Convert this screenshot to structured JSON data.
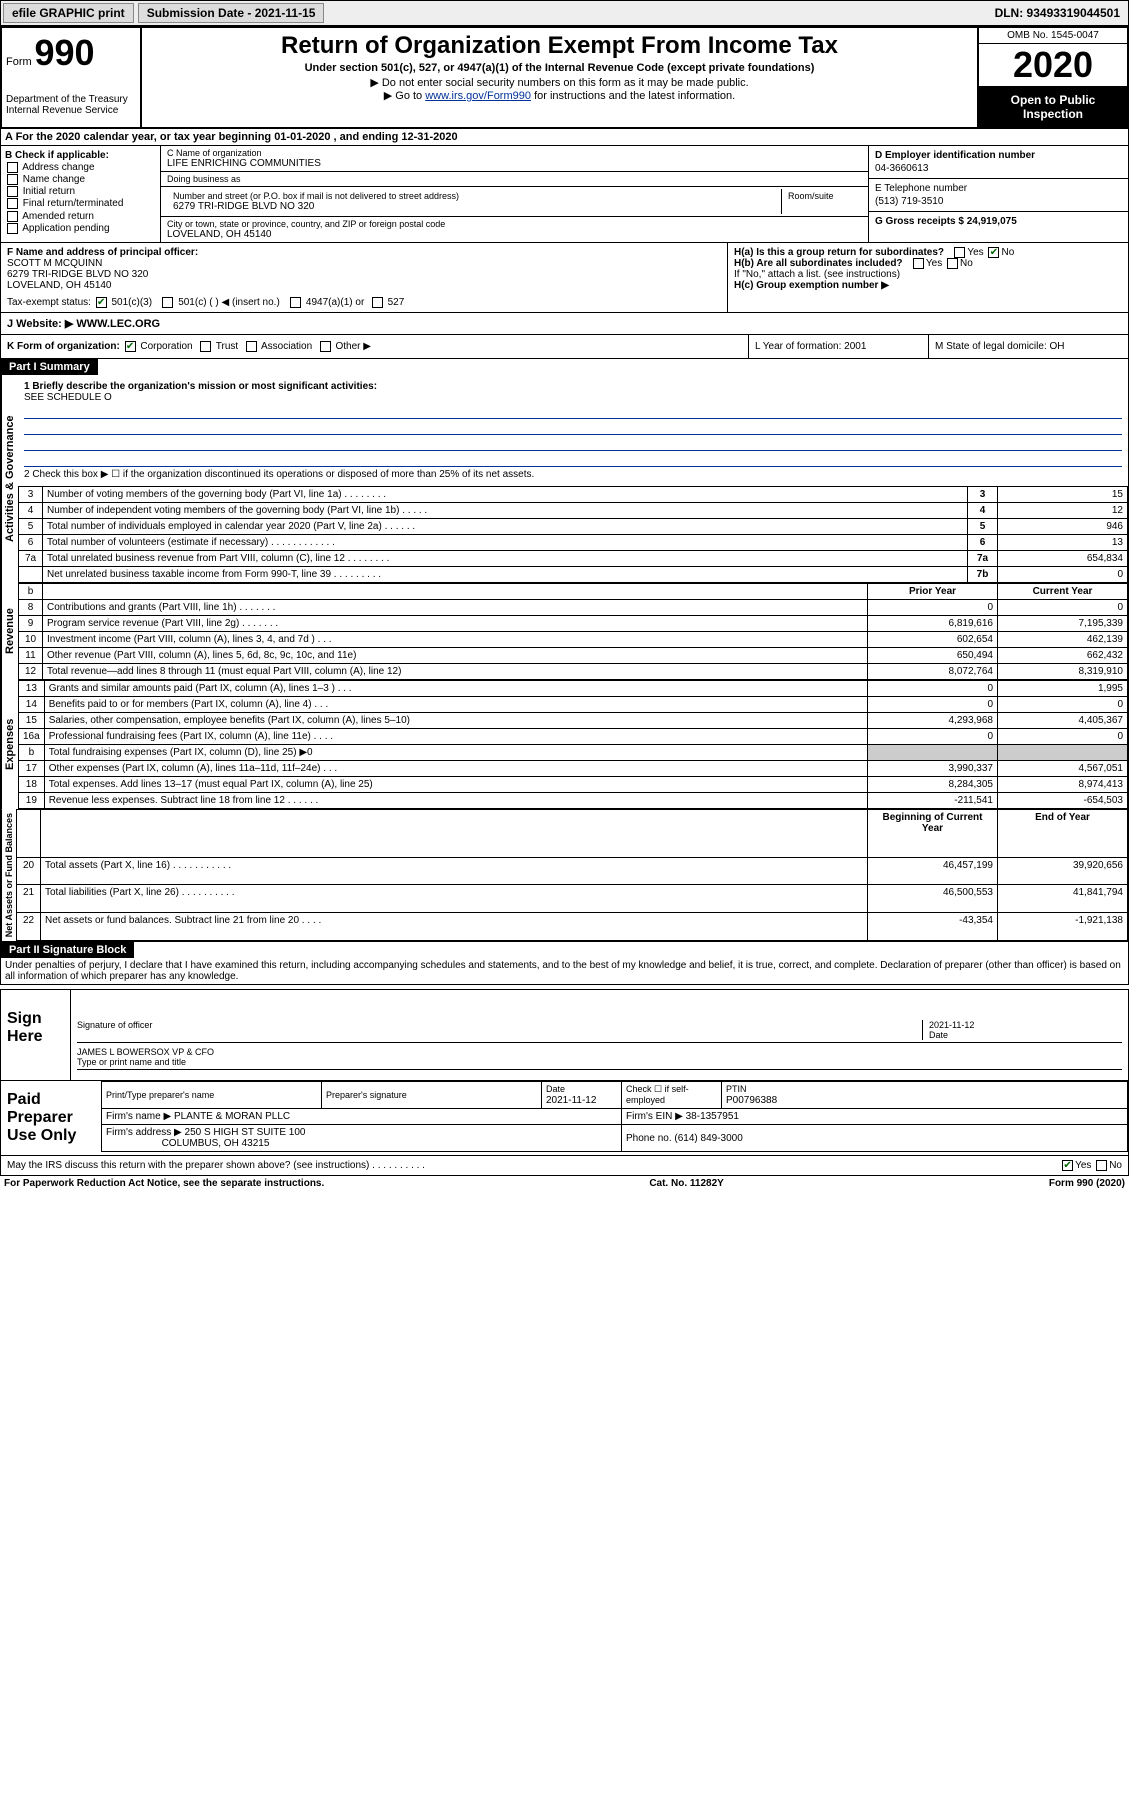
{
  "topbar": {
    "efile": "efile GRAPHIC print",
    "submission_label": "Submission Date - 2021-11-15",
    "dln": "DLN: 93493319044501"
  },
  "header": {
    "form_word": "Form",
    "form_num": "990",
    "dept": "Department of the Treasury\nInternal Revenue Service",
    "title": "Return of Organization Exempt From Income Tax",
    "sub1": "Under section 501(c), 527, or 4947(a)(1) of the Internal Revenue Code (except private foundations)",
    "sub2": "▶ Do not enter social security numbers on this form as it may be made public.",
    "sub3_pre": "▶ Go to ",
    "sub3_link": "www.irs.gov/Form990",
    "sub3_post": " for instructions and the latest information.",
    "omb": "OMB No. 1545-0047",
    "year": "2020",
    "inspect": "Open to Public Inspection"
  },
  "section_a": "A For the 2020 calendar year, or tax year beginning 01-01-2020   , and ending 12-31-2020",
  "col_b": {
    "label": "B Check if applicable:",
    "items": [
      "Address change",
      "Name change",
      "Initial return",
      "Final return/terminated",
      "Amended return",
      "Application pending"
    ]
  },
  "col_c": {
    "name_label": "C Name of organization",
    "name": "LIFE ENRICHING COMMUNITIES",
    "dba_label": "Doing business as",
    "dba": "",
    "street_label": "Number and street (or P.O. box if mail is not delivered to street address)",
    "street": "6279 TRI-RIDGE BLVD NO 320",
    "room_label": "Room/suite",
    "city_label": "City or town, state or province, country, and ZIP or foreign postal code",
    "city": "LOVELAND, OH  45140"
  },
  "col_d": {
    "ein_label": "D Employer identification number",
    "ein": "04-3660613",
    "phone_label": "E Telephone number",
    "phone": "(513) 719-3510",
    "gross_label": "G Gross receipts $ 24,919,075"
  },
  "officer": {
    "label": "F Name and address of principal officer:",
    "name": "SCOTT M MCQUINN",
    "addr1": "6279 TRI-RIDGE BLVD NO 320",
    "addr2": "LOVELAND, OH  45140"
  },
  "h_block": {
    "ha": "H(a)  Is this a group return for subordinates?",
    "ha_yes": "Yes",
    "ha_no": "No",
    "hb": "H(b)  Are all subordinates included?",
    "hb_yes": "Yes",
    "hb_no": "No",
    "hb_note": "If \"No,\" attach a list. (see instructions)",
    "hc": "H(c)  Group exemption number ▶"
  },
  "tax_status": {
    "label": "Tax-exempt status:",
    "opt1": "501(c)(3)",
    "opt2": "501(c) (   ) ◀ (insert no.)",
    "opt3": "4947(a)(1) or",
    "opt4": "527"
  },
  "website": {
    "label": "J   Website: ▶",
    "value": "WWW.LEC.ORG"
  },
  "k_row": {
    "label": "K Form of organization:",
    "opts": [
      "Corporation",
      "Trust",
      "Association",
      "Other ▶"
    ],
    "l": "L Year of formation: 2001",
    "m": "M State of legal domicile: OH"
  },
  "part1": {
    "hdr": "Part I      Summary",
    "line1": "1  Briefly describe the organization's mission or most significant activities:",
    "line1_val": "SEE SCHEDULE O",
    "line2": "2    Check this box ▶ ☐  if the organization discontinued its operations or disposed of more than 25% of its net assets.",
    "vert1": "Activities & Governance",
    "vert2": "Revenue",
    "vert3": "Expenses",
    "vert4": "Net Assets or Fund Balances",
    "rows_gov": [
      {
        "n": "3",
        "t": "Number of voting members of the governing body (Part VI, line 1a)   .    .    .    .    .    .    .    .",
        "box": "3",
        "v": "15"
      },
      {
        "n": "4",
        "t": "Number of independent voting members of the governing body (Part VI, line 1b)   .    .    .    .    .",
        "box": "4",
        "v": "12"
      },
      {
        "n": "5",
        "t": "Total number of individuals employed in calendar year 2020 (Part V, line 2a)   .    .    .    .    .    .",
        "box": "5",
        "v": "946"
      },
      {
        "n": "6",
        "t": "Total number of volunteers (estimate if necessary)   .    .    .    .    .    .    .    .    .    .    .    .",
        "box": "6",
        "v": "13"
      },
      {
        "n": "7a",
        "t": "Total unrelated business revenue from Part VIII, column (C), line 12   .    .    .    .    .    .    .    .",
        "box": "7a",
        "v": "654,834"
      },
      {
        "n": "",
        "t": "Net unrelated business taxable income from Form 990-T, line 39   .    .    .    .    .    .    .    .    .",
        "box": "7b",
        "v": "0"
      }
    ],
    "col_hdrs": {
      "b": "b",
      "prior": "Prior Year",
      "current": "Current Year"
    },
    "rows_rev": [
      {
        "n": "8",
        "t": "Contributions and grants (Part VIII, line 1h)   .    .    .    .    .    .    .",
        "p": "0",
        "c": "0"
      },
      {
        "n": "9",
        "t": "Program service revenue (Part VIII, line 2g)   .    .    .    .    .    .    .",
        "p": "6,819,616",
        "c": "7,195,339"
      },
      {
        "n": "10",
        "t": "Investment income (Part VIII, column (A), lines 3, 4, and 7d )   .    .    .",
        "p": "602,654",
        "c": "462,139"
      },
      {
        "n": "11",
        "t": "Other revenue (Part VIII, column (A), lines 5, 6d, 8c, 9c, 10c, and 11e)",
        "p": "650,494",
        "c": "662,432"
      },
      {
        "n": "12",
        "t": "Total revenue—add lines 8 through 11 (must equal Part VIII, column (A), line 12)",
        "p": "8,072,764",
        "c": "8,319,910"
      }
    ],
    "rows_exp": [
      {
        "n": "13",
        "t": "Grants and similar amounts paid (Part IX, column (A), lines 1–3 )   .    .    .",
        "p": "0",
        "c": "1,995"
      },
      {
        "n": "14",
        "t": "Benefits paid to or for members (Part IX, column (A), line 4)   .    .    .",
        "p": "0",
        "c": "0"
      },
      {
        "n": "15",
        "t": "Salaries, other compensation, employee benefits (Part IX, column (A), lines 5–10)",
        "p": "4,293,968",
        "c": "4,405,367"
      },
      {
        "n": "16a",
        "t": "Professional fundraising fees (Part IX, column (A), line 11e)   .    .    .    .",
        "p": "0",
        "c": "0"
      },
      {
        "n": "b",
        "t": "Total fundraising expenses (Part IX, column (D), line 25) ▶0",
        "p": "grey",
        "c": "grey"
      },
      {
        "n": "17",
        "t": "Other expenses (Part IX, column (A), lines 11a–11d, 11f–24e)   .    .    .",
        "p": "3,990,337",
        "c": "4,567,051"
      },
      {
        "n": "18",
        "t": "Total expenses. Add lines 13–17 (must equal Part IX, column (A), line 25)",
        "p": "8,284,305",
        "c": "8,974,413"
      },
      {
        "n": "19",
        "t": "Revenue less expenses. Subtract line 18 from line 12   .    .    .    .    .    .",
        "p": "-211,541",
        "c": "-654,503"
      }
    ],
    "col_hdrs2": {
      "beg": "Beginning of Current Year",
      "end": "End of Year"
    },
    "rows_net": [
      {
        "n": "20",
        "t": "Total assets (Part X, line 16)   .    .    .    .    .    .    .    .    .    .    .",
        "p": "46,457,199",
        "c": "39,920,656"
      },
      {
        "n": "21",
        "t": "Total liabilities (Part X, line 26)   .    .    .    .    .    .    .    .    .    .",
        "p": "46,500,553",
        "c": "41,841,794"
      },
      {
        "n": "22",
        "t": "Net assets or fund balances. Subtract line 21 from line 20   .    .    .    .",
        "p": "-43,354",
        "c": "-1,921,138"
      }
    ]
  },
  "part2": {
    "hdr": "Part II     Signature Block",
    "perjury": "Under penalties of perjury, I declare that I have examined this return, including accompanying schedules and statements, and to the best of my knowledge and belief, it is true, correct, and complete. Declaration of preparer (other than officer) is based on all information of which preparer has any knowledge."
  },
  "sign": {
    "label": "Sign Here",
    "sig_label": "Signature of officer",
    "date": "2021-11-12",
    "date_label": "Date",
    "name": "JAMES L BOWERSOX VP & CFO",
    "name_label": "Type or print name and title"
  },
  "prep": {
    "label": "Paid Preparer Use Only",
    "col1": "Print/Type preparer's name",
    "col2": "Preparer's signature",
    "col3": "Date",
    "col3v": "2021-11-12",
    "col4": "Check ☐ if self-employed",
    "col5": "PTIN",
    "col5v": "P00796388",
    "firm_label": "Firm's name      ▶",
    "firm": "PLANTE & MORAN PLLC",
    "ein_label": "Firm's EIN ▶",
    "ein": "38-1357951",
    "addr_label": "Firm's address ▶",
    "addr1": "250 S HIGH ST SUITE 100",
    "addr2": "COLUMBUS, OH  43215",
    "phone_label": "Phone no.",
    "phone": "(614) 849-3000"
  },
  "discuss": {
    "text": "May the IRS discuss this return with the preparer shown above? (see instructions)   .    .    .    .    .    .    .    .    .    .",
    "yes": "Yes",
    "no": "No"
  },
  "footer": {
    "left": "For Paperwork Reduction Act Notice, see the separate instructions.",
    "mid": "Cat. No. 11282Y",
    "right": "Form 990 (2020)"
  }
}
